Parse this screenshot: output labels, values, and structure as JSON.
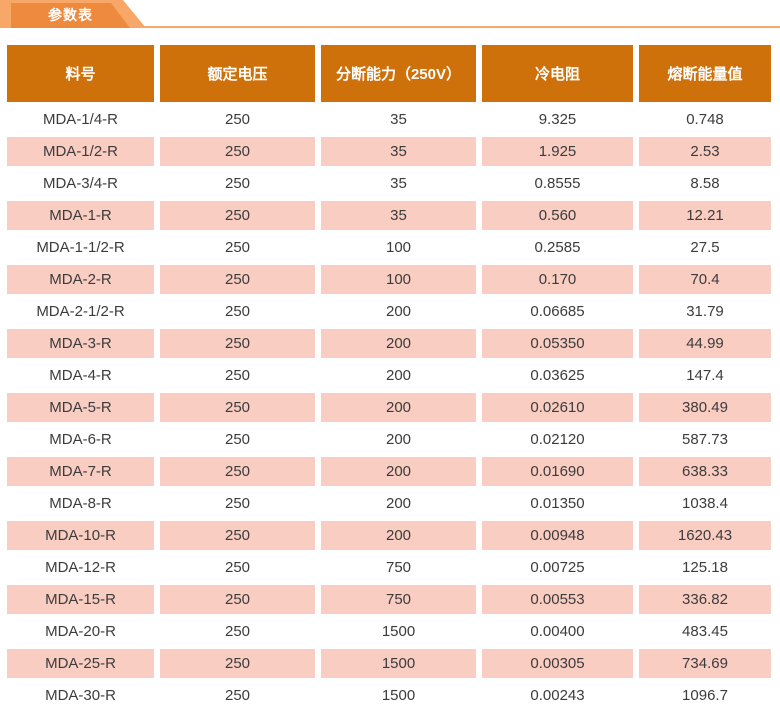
{
  "tab": {
    "label": "参数表"
  },
  "colors": {
    "tab_outer": "#f7a767",
    "tab_inner": "#ee8a3e",
    "header_bg": "#cf710a",
    "row_alt_bg": "#f9cdc1",
    "body_text": "#3c3c3c",
    "header_text": "#ffffff"
  },
  "chart_data": {
    "type": "table",
    "title": "参数表",
    "columns": [
      "料号",
      "额定电压",
      "分断能力（250V）",
      "冷电阻",
      "熔断能量值"
    ],
    "rows": [
      [
        "MDA-1/4-R",
        "250",
        "35",
        "9.325",
        "0.748"
      ],
      [
        "MDA-1/2-R",
        "250",
        "35",
        "1.925",
        "2.53"
      ],
      [
        "MDA-3/4-R",
        "250",
        "35",
        "0.8555",
        "8.58"
      ],
      [
        "MDA-1-R",
        "250",
        "35",
        "0.560",
        "12.21"
      ],
      [
        "MDA-1-1/2-R",
        "250",
        "100",
        "0.2585",
        "27.5"
      ],
      [
        "MDA-2-R",
        "250",
        "100",
        "0.170",
        "70.4"
      ],
      [
        "MDA-2-1/2-R",
        "250",
        "200",
        "0.06685",
        "31.79"
      ],
      [
        "MDA-3-R",
        "250",
        "200",
        "0.05350",
        "44.99"
      ],
      [
        "MDA-4-R",
        "250",
        "200",
        "0.03625",
        "147.4"
      ],
      [
        "MDA-5-R",
        "250",
        "200",
        "0.02610",
        "380.49"
      ],
      [
        "MDA-6-R",
        "250",
        "200",
        "0.02120",
        "587.73"
      ],
      [
        "MDA-7-R",
        "250",
        "200",
        "0.01690",
        "638.33"
      ],
      [
        "MDA-8-R",
        "250",
        "200",
        "0.01350",
        "1038.4"
      ],
      [
        "MDA-10-R",
        "250",
        "200",
        "0.00948",
        "1620.43"
      ],
      [
        "MDA-12-R",
        "250",
        "750",
        "0.00725",
        "125.18"
      ],
      [
        "MDA-15-R",
        "250",
        "750",
        "0.00553",
        "336.82"
      ],
      [
        "MDA-20-R",
        "250",
        "1500",
        "0.00400",
        "483.45"
      ],
      [
        "MDA-25-R",
        "250",
        "1500",
        "0.00305",
        "734.69"
      ],
      [
        "MDA-30-R",
        "250",
        "1500",
        "0.00243",
        "1096.7"
      ]
    ]
  }
}
